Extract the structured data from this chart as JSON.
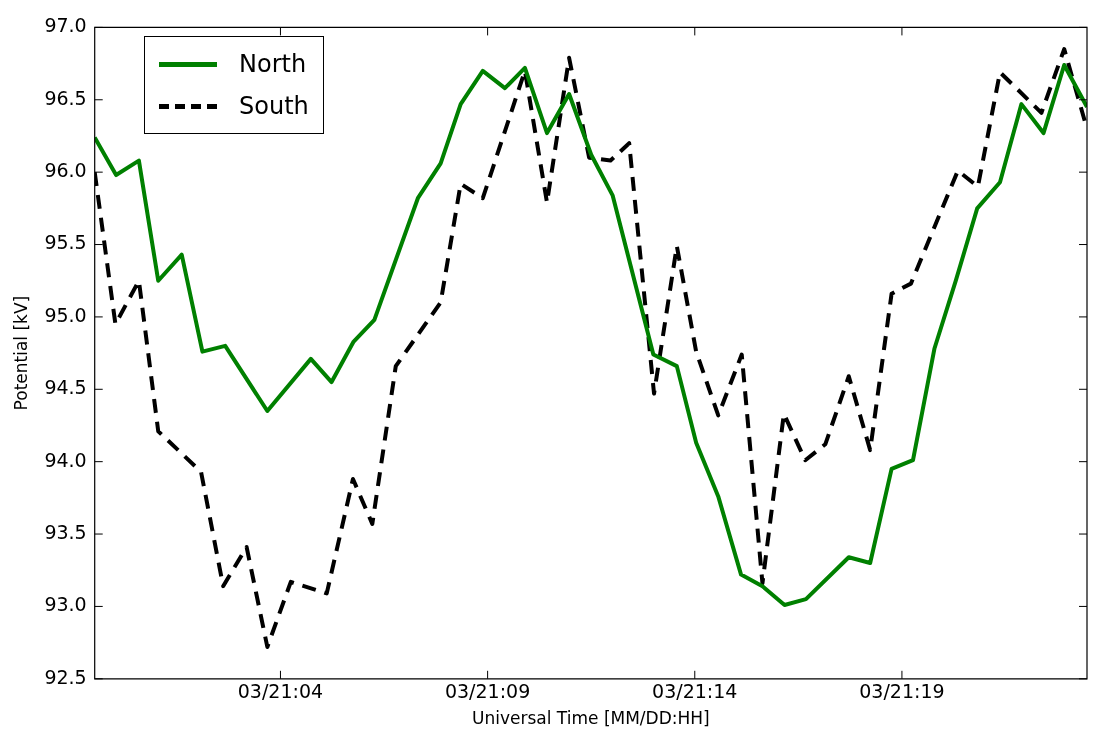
{
  "chart_data": {
    "type": "line",
    "xlabel": "Universal Time [MM/DD:HH]",
    "ylabel": "Potential [kV]",
    "xlim": [
      "--03-20T23:31",
      "--03-21T23:28"
    ],
    "xticks": [
      {
        "value": "--03-21T04:00",
        "label": "03/21:04"
      },
      {
        "value": "--03-21T09:00",
        "label": "03/21:09"
      },
      {
        "value": "--03-21T14:00",
        "label": "03/21:14"
      },
      {
        "value": "--03-21T19:00",
        "label": "03/21:19"
      }
    ],
    "ylim": [
      92.5,
      97.0
    ],
    "yticks": [
      {
        "value": 92.5,
        "label": "92.5"
      },
      {
        "value": 93.0,
        "label": "93.0"
      },
      {
        "value": 93.5,
        "label": "93.5"
      },
      {
        "value": 94.0,
        "label": "94.0"
      },
      {
        "value": 94.5,
        "label": "94.5"
      },
      {
        "value": 95.0,
        "label": "95.0"
      },
      {
        "value": 95.5,
        "label": "95.5"
      },
      {
        "value": 96.0,
        "label": "96.0"
      },
      {
        "value": 96.5,
        "label": "96.5"
      },
      {
        "value": 97.0,
        "label": "97.0"
      }
    ],
    "grid": false,
    "legend": "top left",
    "series": [
      {
        "name": "North",
        "color": "#008000",
        "line_style": "solid",
        "x": [
          "--03-20T23:31",
          "--03-21T00:02",
          "--03-21T00:35",
          "--03-21T01:03",
          "--03-21T01:37",
          "--03-21T02:07",
          "--03-21T02:40",
          "--03-21T03:41",
          "--03-21T04:44",
          "--03-21T05:14",
          "--03-21T05:46",
          "--03-21T06:16",
          "--03-21T07:19",
          "--03-21T07:52",
          "--03-21T08:21",
          "--03-21T08:53",
          "--03-21T09:25",
          "--03-21T09:54",
          "--03-21T10:26",
          "--03-21T10:58",
          "--03-21T11:30",
          "--03-21T12:01",
          "--03-21T13:00",
          "--03-21T13:34",
          "--03-21T14:02",
          "--03-21T14:34",
          "--03-21T15:07",
          "--03-21T15:38",
          "--03-21T16:10",
          "--03-21T16:41",
          "--03-21T17:43",
          "--03-21T18:14",
          "--03-21T18:45",
          "--03-21T19:16",
          "--03-21T19:47",
          "--03-21T20:18",
          "--03-21T20:49",
          "--03-21T21:22",
          "--03-21T21:53",
          "--03-21T22:25",
          "--03-21T22:55",
          "--03-21T23:28"
        ],
        "values": [
          96.24,
          95.98,
          96.08,
          95.25,
          95.43,
          94.76,
          94.8,
          94.35,
          94.71,
          94.55,
          94.83,
          94.98,
          95.82,
          96.06,
          96.47,
          96.7,
          96.58,
          96.72,
          96.27,
          96.54,
          96.12,
          95.84,
          94.74,
          94.66,
          94.13,
          93.76,
          93.22,
          93.14,
          93.01,
          93.05,
          93.34,
          93.3,
          93.95,
          94.01,
          94.78,
          95.25,
          95.75,
          95.93,
          96.47,
          96.27,
          96.74,
          96.45
        ]
      },
      {
        "name": "South",
        "color": "#000000",
        "line_style": "dashed",
        "x": [
          "--03-20T23:31",
          "--03-21T00:01",
          "--03-21T00:35",
          "--03-21T01:03",
          "--03-21T01:34",
          "--03-21T02:05",
          "--03-21T02:37",
          "--03-21T03:11",
          "--03-21T03:41",
          "--03-21T04:15",
          "--03-21T05:07",
          "--03-21T05:45",
          "--03-21T06:13",
          "--03-21T06:47",
          "--03-21T07:52",
          "--03-21T08:21",
          "--03-21T08:53",
          "--03-21T09:54",
          "--03-21T10:26",
          "--03-21T10:58",
          "--03-21T11:27",
          "--03-21T11:58",
          "--03-21T12:25",
          "--03-21T13:01",
          "--03-21T13:34",
          "--03-21T14:02",
          "--03-21T14:34",
          "--03-21T15:08",
          "--03-21T15:38",
          "--03-21T16:09",
          "--03-21T16:40",
          "--03-21T17:09",
          "--03-21T17:43",
          "--03-21T18:14",
          "--03-21T18:45",
          "--03-21T19:13",
          "--03-21T20:21",
          "--03-21T20:50",
          "--03-21T21:22",
          "--03-21T22:22",
          "--03-21T22:55",
          "--03-21T23:28"
        ],
        "values": [
          96.0,
          94.95,
          95.25,
          94.21,
          94.07,
          93.93,
          93.14,
          93.41,
          92.72,
          93.17,
          93.09,
          93.88,
          93.57,
          94.66,
          95.1,
          95.92,
          95.82,
          96.7,
          95.79,
          96.79,
          96.1,
          96.08,
          96.2,
          94.47,
          95.49,
          94.76,
          94.32,
          94.74,
          93.16,
          94.33,
          94.01,
          94.12,
          94.59,
          94.08,
          95.16,
          95.23,
          96.01,
          95.9,
          96.69,
          96.41,
          96.85,
          96.3
        ]
      }
    ]
  }
}
